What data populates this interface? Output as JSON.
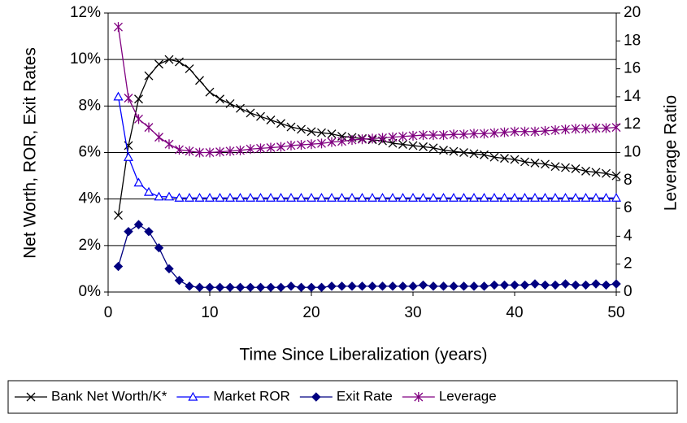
{
  "chart_data": {
    "type": "line",
    "xlabel": "Time Since Liberalization (years)",
    "ylabel": "Net Worth, ROR, Exit Rates",
    "y2label": "Leverage Ratio",
    "x": [
      1,
      2,
      3,
      4,
      5,
      6,
      7,
      8,
      9,
      10,
      11,
      12,
      13,
      14,
      15,
      16,
      17,
      18,
      19,
      20,
      21,
      22,
      23,
      24,
      25,
      26,
      27,
      28,
      29,
      30,
      31,
      32,
      33,
      34,
      35,
      36,
      37,
      38,
      39,
      40,
      41,
      42,
      43,
      44,
      45,
      46,
      47,
      48,
      49,
      50
    ],
    "xlim": [
      0,
      50
    ],
    "xticks": [
      0,
      10,
      20,
      30,
      40,
      50
    ],
    "ylim": [
      0,
      12
    ],
    "yticks": [
      {
        "value": 0,
        "label": "0%"
      },
      {
        "value": 2,
        "label": "2%"
      },
      {
        "value": 4,
        "label": "4%"
      },
      {
        "value": 6,
        "label": "6%"
      },
      {
        "value": 8,
        "label": "8%"
      },
      {
        "value": 10,
        "label": "10%"
      },
      {
        "value": 12,
        "label": "12%"
      }
    ],
    "y2lim": [
      0,
      20
    ],
    "y2ticks": [
      0,
      2,
      4,
      6,
      8,
      10,
      12,
      14,
      16,
      18,
      20
    ],
    "grid": true,
    "legend": "bottom",
    "series": [
      {
        "name": "Bank Net Worth/K*",
        "color": "#000000",
        "marker": "x",
        "values": [
          3.3,
          6.3,
          8.3,
          9.3,
          9.8,
          10.0,
          9.9,
          9.6,
          9.1,
          8.6,
          8.3,
          8.1,
          7.9,
          7.7,
          7.55,
          7.4,
          7.25,
          7.1,
          7.0,
          6.9,
          6.85,
          6.8,
          6.7,
          6.65,
          6.6,
          6.55,
          6.5,
          6.4,
          6.35,
          6.3,
          6.25,
          6.2,
          6.1,
          6.05,
          6.0,
          5.95,
          5.9,
          5.8,
          5.75,
          5.7,
          5.6,
          5.55,
          5.5,
          5.4,
          5.35,
          5.3,
          5.2,
          5.15,
          5.1,
          5.0
        ]
      },
      {
        "name": "Market ROR",
        "color": "#0000ff",
        "marker": "triangle",
        "values": [
          8.4,
          5.8,
          4.7,
          4.3,
          4.1,
          4.1,
          4.05,
          4.05,
          4.05,
          4.05,
          4.05,
          4.05,
          4.05,
          4.05,
          4.05,
          4.05,
          4.05,
          4.05,
          4.05,
          4.05,
          4.05,
          4.05,
          4.05,
          4.05,
          4.05,
          4.05,
          4.05,
          4.05,
          4.05,
          4.05,
          4.05,
          4.05,
          4.05,
          4.05,
          4.05,
          4.05,
          4.05,
          4.05,
          4.05,
          4.05,
          4.05,
          4.05,
          4.05,
          4.05,
          4.05,
          4.05,
          4.05,
          4.05,
          4.05,
          4.05
        ]
      },
      {
        "name": "Exit Rate",
        "color": "#000080",
        "marker": "diamond",
        "values": [
          1.1,
          2.6,
          2.9,
          2.6,
          1.9,
          1.0,
          0.5,
          0.25,
          0.2,
          0.2,
          0.2,
          0.2,
          0.2,
          0.2,
          0.2,
          0.2,
          0.2,
          0.25,
          0.2,
          0.2,
          0.2,
          0.25,
          0.25,
          0.25,
          0.25,
          0.25,
          0.25,
          0.25,
          0.25,
          0.25,
          0.3,
          0.25,
          0.25,
          0.25,
          0.25,
          0.25,
          0.25,
          0.3,
          0.3,
          0.3,
          0.3,
          0.35,
          0.3,
          0.3,
          0.35,
          0.3,
          0.3,
          0.35,
          0.3,
          0.35
        ]
      },
      {
        "name": "Leverage",
        "color": "#800080",
        "marker": "star",
        "axis": "y2",
        "values": [
          19.0,
          13.9,
          12.4,
          11.8,
          11.1,
          10.6,
          10.2,
          10.1,
          10.0,
          10.0,
          10.05,
          10.1,
          10.15,
          10.25,
          10.3,
          10.35,
          10.4,
          10.5,
          10.55,
          10.6,
          10.65,
          10.75,
          10.8,
          10.9,
          10.95,
          11.0,
          11.05,
          11.1,
          11.15,
          11.2,
          11.25,
          11.25,
          11.25,
          11.3,
          11.3,
          11.35,
          11.35,
          11.4,
          11.45,
          11.5,
          11.5,
          11.5,
          11.55,
          11.6,
          11.65,
          11.7,
          11.7,
          11.75,
          11.75,
          11.8
        ]
      }
    ]
  }
}
